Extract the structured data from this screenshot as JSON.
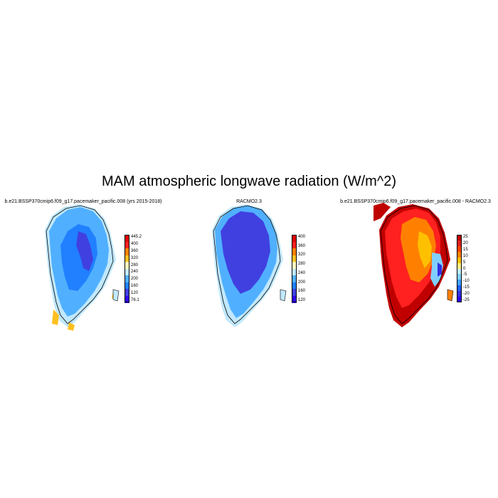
{
  "title": "MAM atmospheric longwave radiation (W/m^2)",
  "panels": [
    {
      "title": "b.e21.BSSP370cmip6.f09_g17.pacemaker_pacific.008 (yrs 2015-2018)",
      "colorbar": {
        "colors": [
          "#e00000",
          "#ff2020",
          "#ff8000",
          "#ffc020",
          "#ffffc0",
          "#c0e8ff",
          "#50b0ff",
          "#2080ff",
          "#4040e0",
          "#3000ff"
        ],
        "labels": [
          "445.2",
          "400",
          "360",
          "320",
          "280",
          "240",
          "200",
          "160",
          "120",
          "76.1"
        ]
      }
    },
    {
      "title": "RACMO2.3",
      "colorbar": {
        "colors": [
          "#e00000",
          "#ff2020",
          "#ff8000",
          "#ffc020",
          "#ffffc0",
          "#c0e8ff",
          "#50b0ff",
          "#2080ff",
          "#4040e0",
          "#3000ff"
        ],
        "labels": [
          "400",
          "360",
          "320",
          "280",
          "240",
          "200",
          "160",
          "120"
        ]
      }
    },
    {
      "title": "b.e21.BSSP370cmip6.f09_g17.pacemaker_pacific.008 - RACMO2.3",
      "colorbar": {
        "colors": [
          "#c00000",
          "#e02020",
          "#ff4000",
          "#ff8000",
          "#ffc000",
          "#fff080",
          "#c0f0ff",
          "#80d0ff",
          "#40a0ff",
          "#2060ff",
          "#3030e0",
          "#3000ff"
        ],
        "labels": [
          "25",
          "20",
          "15",
          "10",
          "5",
          "0",
          "-5",
          "-10",
          "-15",
          "-20",
          "-25"
        ]
      }
    }
  ]
}
